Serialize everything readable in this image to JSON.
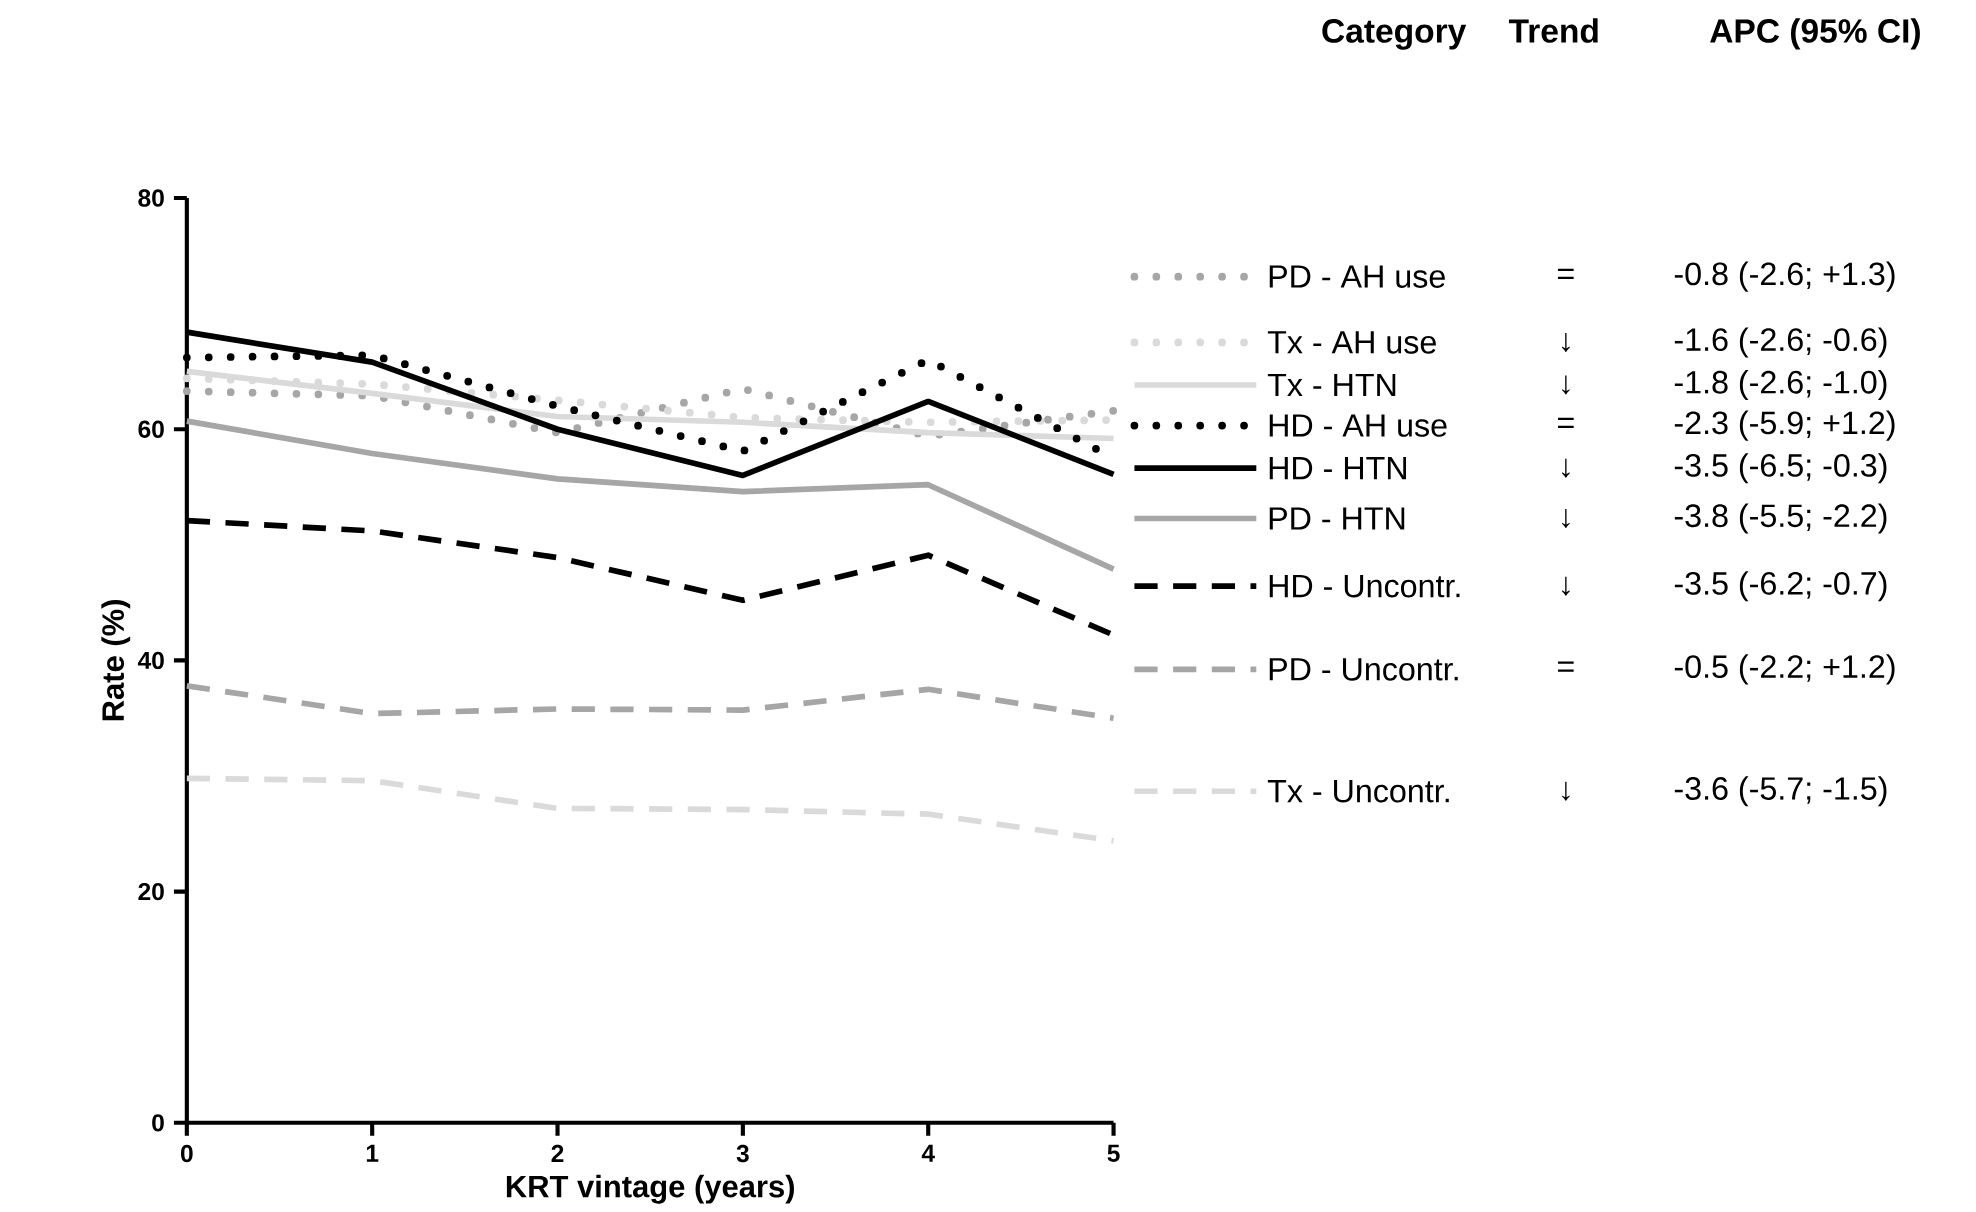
{
  "chart_data": {
    "type": "line",
    "xlabel": "KRT vintage (years)",
    "ylabel": "Rate (%)",
    "x": [
      0,
      1,
      2,
      3,
      4,
      5
    ],
    "xlim": [
      0,
      5
    ],
    "ylim": [
      0,
      80
    ],
    "xticks": [
      0,
      1,
      2,
      3,
      4,
      5
    ],
    "yticks": [
      0,
      20,
      40,
      60,
      80
    ],
    "grid": false,
    "legend": "right",
    "marker": "none",
    "series": [
      {
        "name": "PD - AH use",
        "color": "#a6a6a6",
        "line_style": "dotted",
        "values": [
          63.3,
          62.9,
          59.7,
          63.5,
          59.4,
          61.6
        ]
      },
      {
        "name": "Tx - AH use",
        "color": "#dadada",
        "line_style": "dotted",
        "values": [
          64.4,
          63.9,
          62.5,
          61.0,
          60.6,
          60.8
        ]
      },
      {
        "name": "Tx - HTN",
        "color": "#dadada",
        "line_style": "solid",
        "values": [
          65.0,
          63.1,
          61.1,
          60.6,
          59.7,
          59.2
        ]
      },
      {
        "name": "HD - AH use",
        "color": "#000000",
        "line_style": "dotted",
        "values": [
          66.2,
          66.4,
          62.0,
          58.1,
          66.0,
          57.5
        ]
      },
      {
        "name": "HD - HTN",
        "color": "#000000",
        "line_style": "solid",
        "values": [
          68.4,
          65.8,
          60.0,
          56.0,
          62.4,
          56.1
        ]
      },
      {
        "name": "PD - HTN",
        "color": "#a6a6a6",
        "line_style": "solid",
        "values": [
          60.7,
          57.9,
          55.7,
          54.6,
          55.2,
          47.9
        ]
      },
      {
        "name": "HD - Uncontr.",
        "color": "#000000",
        "line_style": "dashed",
        "values": [
          52.1,
          51.2,
          48.9,
          45.2,
          49.1,
          42.2
        ]
      },
      {
        "name": "PD - Uncontr.",
        "color": "#a6a6a6",
        "line_style": "dashed",
        "values": [
          37.8,
          35.4,
          35.8,
          35.7,
          37.5,
          35.0
        ]
      },
      {
        "name": "Tx - Uncontr.",
        "color": "#dadada",
        "line_style": "dashed",
        "values": [
          29.8,
          29.6,
          27.2,
          27.1,
          26.7,
          24.4
        ]
      }
    ],
    "annotations": [
      "Category",
      "Trend",
      "APC (95% CI)",
      "=",
      "-0.8 (-2.6; +1.3)",
      "↓",
      "-1.6 (-2.6; -0.6)",
      "↓",
      "-1.8 (-2.6; -1.0)",
      "=",
      "-2.3 (-5.9; +1.2)",
      "↓",
      "-3.5 (-6.5; -0.3)",
      "↓",
      "-3.8 (-5.5; -2.2)",
      "↓",
      "-3.5 (-6.2; -0.7)",
      "=",
      "-0.5 (-2.2; +1.2)",
      "↓",
      "-3.6 (-5.7; -1.5)"
    ]
  }
}
